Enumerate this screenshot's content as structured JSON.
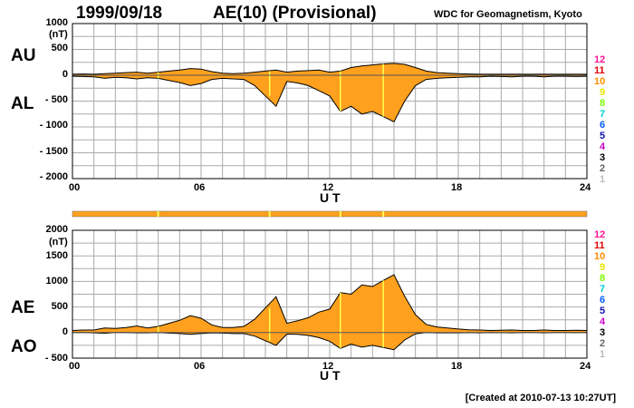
{
  "header": {
    "date": "1999/09/18",
    "title": "AE(10) (Provisional)",
    "source": "WDC for Geomagnetism, Kyoto"
  },
  "footer": {
    "created": "[Created at 2010-07-13 10:27UT]"
  },
  "labels": {
    "au": "AU",
    "al": "AL",
    "ae": "AE",
    "ao": "AO",
    "ut": "U T",
    "unit": "(nT)"
  },
  "color_key": {
    "labels": [
      "12",
      "11",
      "10",
      "9",
      "8",
      "7",
      "6",
      "5",
      "4",
      "3",
      "2",
      "1"
    ],
    "colors": [
      "#ff1493",
      "#e00000",
      "#ff8c00",
      "#e6e600",
      "#7cfc00",
      "#00ced1",
      "#0060ff",
      "#1010b0",
      "#cc00cc",
      "#000000",
      "#666666",
      "#bbbbbb"
    ]
  },
  "colors": {
    "fill": "#ffa01e",
    "line": "#000000",
    "bar": "#ffa01e",
    "highlight": "#ffff50"
  },
  "chart_data": [
    {
      "type": "area",
      "title": "AU / AL",
      "xlabel": "U T",
      "ylabel": "(nT)",
      "xlim": [
        0,
        24
      ],
      "ylim": [
        -2000,
        1000
      ],
      "x_ticks": [
        "00",
        "06",
        "12",
        "18",
        "24"
      ],
      "y_ticks": [
        "1000",
        "500",
        "0",
        "- 500",
        "- 1000",
        "- 1500",
        "- 2000"
      ],
      "x": [
        0,
        0.5,
        1,
        1.5,
        2,
        2.5,
        3,
        3.5,
        4,
        4.5,
        5,
        5.5,
        6,
        6.5,
        7,
        7.5,
        8,
        8.5,
        9,
        9.5,
        10,
        10.5,
        11,
        11.5,
        12,
        12.5,
        13,
        13.5,
        14,
        14.5,
        15,
        15.5,
        16,
        16.5,
        17,
        17.5,
        18,
        18.5,
        19,
        19.5,
        20,
        20.5,
        21,
        21.5,
        22,
        22.5,
        23,
        23.5,
        24
      ],
      "series": [
        {
          "name": "AU",
          "values": [
            20,
            25,
            20,
            30,
            40,
            50,
            60,
            40,
            60,
            80,
            100,
            130,
            120,
            70,
            40,
            30,
            40,
            60,
            80,
            100,
            60,
            80,
            90,
            100,
            60,
            80,
            150,
            180,
            200,
            220,
            230,
            210,
            150,
            80,
            50,
            40,
            30,
            25,
            20,
            20,
            20,
            20,
            20,
            20,
            20,
            20,
            20,
            20,
            20
          ]
        },
        {
          "name": "AL",
          "values": [
            -20,
            -25,
            -30,
            -60,
            -40,
            -50,
            -70,
            -50,
            -60,
            -100,
            -140,
            -200,
            -160,
            -80,
            -60,
            -70,
            -80,
            -200,
            -400,
            -600,
            -120,
            -150,
            -200,
            -300,
            -400,
            -700,
            -600,
            -750,
            -700,
            -800,
            -900,
            -500,
            -200,
            -80,
            -60,
            -50,
            -40,
            -30,
            -30,
            -20,
            -25,
            -30,
            -20,
            -20,
            -30,
            -20,
            -20,
            -25,
            -20
          ]
        }
      ],
      "highlights_ut": [
        4,
        9.2,
        12.5,
        14.5
      ]
    },
    {
      "type": "area",
      "title": "AE / AO",
      "xlabel": "U T",
      "ylabel": "(nT)",
      "xlim": [
        0,
        24
      ],
      "ylim": [
        -500,
        2000
      ],
      "x_ticks": [
        "00",
        "06",
        "12",
        "18",
        "24"
      ],
      "y_ticks": [
        "2000",
        "1500",
        "1000",
        "500",
        "0",
        "- 500"
      ],
      "x": [
        0,
        0.5,
        1,
        1.5,
        2,
        2.5,
        3,
        3.5,
        4,
        4.5,
        5,
        5.5,
        6,
        6.5,
        7,
        7.5,
        8,
        8.5,
        9,
        9.5,
        10,
        10.5,
        11,
        11.5,
        12,
        12.5,
        13,
        13.5,
        14,
        14.5,
        15,
        15.5,
        16,
        16.5,
        17,
        17.5,
        18,
        18.5,
        19,
        19.5,
        20,
        20.5,
        21,
        21.5,
        22,
        22.5,
        23,
        23.5,
        24
      ],
      "series": [
        {
          "name": "AE",
          "values": [
            40,
            50,
            50,
            90,
            80,
            100,
            130,
            90,
            120,
            180,
            240,
            330,
            280,
            150,
            100,
            100,
            120,
            260,
            480,
            700,
            180,
            230,
            290,
            400,
            460,
            780,
            750,
            930,
            900,
            1020,
            1130,
            710,
            350,
            160,
            110,
            90,
            70,
            55,
            50,
            40,
            45,
            50,
            40,
            40,
            50,
            40,
            40,
            45,
            40
          ]
        },
        {
          "name": "AO",
          "values": [
            0,
            0,
            -5,
            -15,
            0,
            0,
            -5,
            -5,
            0,
            -10,
            -20,
            -35,
            -20,
            -5,
            -10,
            -20,
            -20,
            -70,
            -160,
            -250,
            -30,
            -35,
            -55,
            -100,
            -170,
            -310,
            -225,
            -285,
            -250,
            -290,
            -335,
            -145,
            -25,
            0,
            -5,
            -5,
            -5,
            -2,
            -5,
            0,
            -2,
            -5,
            0,
            0,
            -5,
            0,
            0,
            -2,
            0
          ]
        }
      ],
      "highlights_ut": [
        4,
        9.2,
        12.5,
        14.5
      ]
    }
  ]
}
